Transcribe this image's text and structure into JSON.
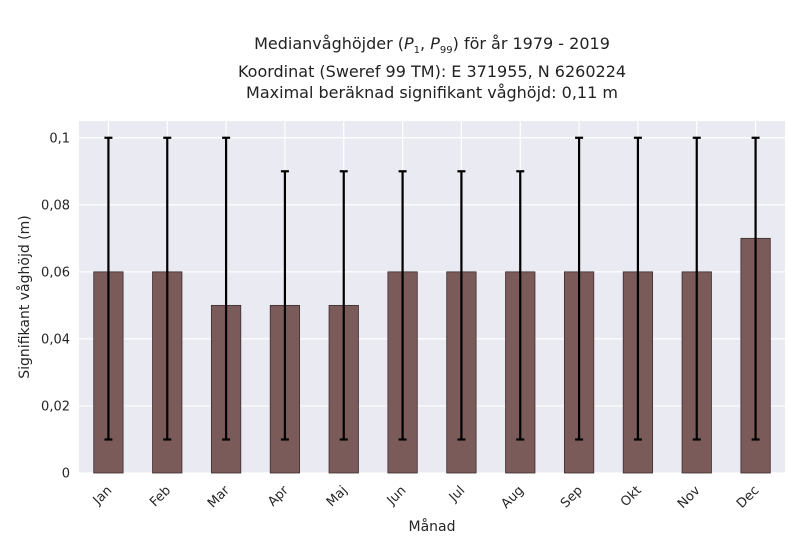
{
  "chart_data": {
    "type": "bar",
    "title_lines": [
      "Medianvåghöjder (P1, P99) för år 1979 - 2019",
      "Koordinat (Sweref 99 TM): E 371955, N 6260224",
      "Maximal beräknad signifikant våghöjd: 0,11 m"
    ],
    "xlabel": "Månad",
    "ylabel": "Signifikant våghöjd (m)",
    "categories": [
      "Jan",
      "Feb",
      "Mar",
      "Apr",
      "Maj",
      "Jun",
      "Jul",
      "Aug",
      "Sep",
      "Okt",
      "Nov",
      "Dec"
    ],
    "values": [
      0.06,
      0.06,
      0.05,
      0.05,
      0.05,
      0.06,
      0.06,
      0.06,
      0.06,
      0.06,
      0.06,
      0.07
    ],
    "error_low": [
      0.01,
      0.01,
      0.01,
      0.01,
      0.01,
      0.01,
      0.01,
      0.01,
      0.01,
      0.01,
      0.01,
      0.01
    ],
    "error_high": [
      0.1,
      0.1,
      0.1,
      0.09,
      0.09,
      0.09,
      0.09,
      0.09,
      0.1,
      0.1,
      0.1,
      0.1
    ],
    "ylim": [
      0,
      0.105
    ],
    "yticks": [
      0,
      0.02,
      0.04,
      0.06,
      0.08,
      0.1
    ],
    "ytick_labels": [
      "0",
      "0,02",
      "0,04",
      "0,06",
      "0,08",
      "0,1"
    ],
    "grid": true,
    "colors": {
      "bar": "#7b5a5a",
      "bar_edge": "#3a2e2e",
      "error_bar": "#000000",
      "plot_background": "#eaeaf2",
      "grid": "#ffffff"
    }
  }
}
